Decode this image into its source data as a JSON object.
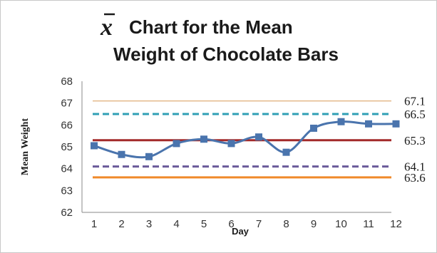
{
  "chart_data": {
    "type": "line",
    "title_symbol": "x",
    "title_line1": "Chart for the Mean",
    "title_line2": "Weight of Chocolate Bars",
    "xlabel": "Day",
    "ylabel": "Mean Weight",
    "categories": [
      "1",
      "2",
      "3",
      "4",
      "5",
      "6",
      "7",
      "8",
      "9",
      "10",
      "11",
      "12"
    ],
    "ylim": [
      62,
      68
    ],
    "yticks": [
      "62",
      "63",
      "64",
      "65",
      "66",
      "67",
      "68"
    ],
    "series": [
      {
        "values": [
          65.05,
          64.65,
          64.55,
          65.15,
          65.35,
          65.15,
          65.45,
          64.75,
          65.85,
          66.15,
          66.05,
          66.05
        ],
        "color": "#4a74ad"
      }
    ],
    "reference_lines": [
      {
        "value": 67.1,
        "label": "67.1",
        "color": "#e4b98a",
        "style": "solid"
      },
      {
        "value": 66.5,
        "label": "66.5",
        "color": "#2f9fb5",
        "style": "dashed"
      },
      {
        "value": 65.3,
        "label": "65.3",
        "color": "#a32929",
        "style": "solid"
      },
      {
        "value": 64.1,
        "label": "64.1",
        "color": "#6a5a9a",
        "style": "dashed"
      },
      {
        "value": 63.6,
        "label": "63.6",
        "color": "#f08a2a",
        "style": "solid"
      }
    ],
    "grid": false,
    "legend": "none"
  }
}
